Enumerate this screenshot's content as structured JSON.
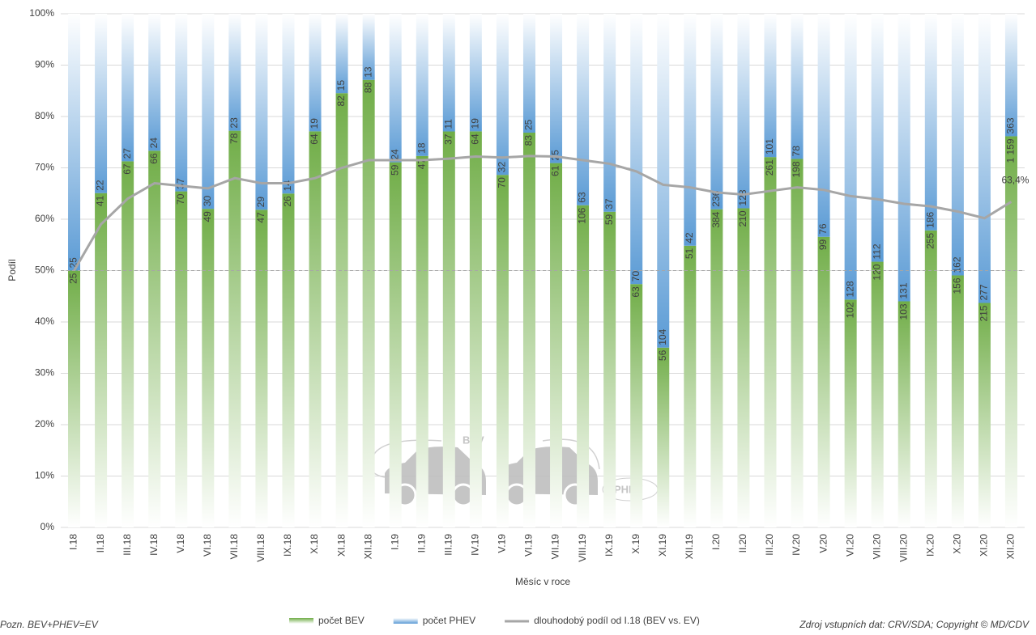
{
  "chart_data": {
    "type": "bar",
    "stacked": "percent",
    "y_label": "Podíl",
    "x_label": "Měsíc v roce",
    "note_left": "Pozn. BEV+PHEV=EV",
    "note_right": "Zdroj vstupních dat: CRV/SDA; Copyright © MD/CDV",
    "watermark_texts": [
      "BEV",
      "PHEV"
    ],
    "categories": [
      "I.18",
      "II.18",
      "III.18",
      "IV.18",
      "V.18",
      "VI.18",
      "VII.18",
      "VIII.18",
      "IX.18",
      "X.18",
      "XI.18",
      "XII.18",
      "I.19",
      "II.19",
      "III.19",
      "IV.19",
      "V.19",
      "VI.19",
      "VII.19",
      "VIII.19",
      "IX.19",
      "X.19",
      "XI.19",
      "XII.19",
      "I.20",
      "II.20",
      "III.20",
      "IV.20",
      "V.20",
      "VI.20",
      "VII.20",
      "VIII.20",
      "IX.20",
      "X.20",
      "XI.20",
      "XII.20"
    ],
    "series": [
      {
        "name": "počet BEV",
        "type": "bar",
        "color": "#70ad47",
        "values": [
          25,
          41,
          67,
          66,
          70,
          49,
          78,
          47,
          26,
          64,
          82,
          88,
          59,
          47,
          37,
          64,
          70,
          83,
          61,
          106,
          59,
          63,
          56,
          51,
          384,
          210,
          261,
          198,
          99,
          102,
          120,
          103,
          255,
          156,
          215,
          1159
        ],
        "value_labels": [
          null,
          null,
          null,
          null,
          null,
          null,
          null,
          null,
          null,
          null,
          null,
          null,
          null,
          null,
          null,
          null,
          null,
          null,
          null,
          null,
          null,
          null,
          null,
          null,
          null,
          null,
          null,
          null,
          null,
          null,
          null,
          null,
          null,
          null,
          null,
          "1 159"
        ]
      },
      {
        "name": "počet PHEV",
        "type": "bar",
        "color": "#5b9bd5",
        "values": [
          25,
          22,
          27,
          24,
          37,
          30,
          23,
          29,
          14,
          19,
          15,
          13,
          24,
          18,
          11,
          19,
          32,
          25,
          25,
          63,
          37,
          70,
          104,
          42,
          236,
          128,
          101,
          78,
          76,
          128,
          112,
          131,
          186,
          162,
          277,
          363
        ]
      },
      {
        "name": "dlouhodobý podíl od I.18 (BEV vs. EV)",
        "type": "line",
        "color": "#a6a6a6",
        "values": [
          50,
          59,
          64,
          67,
          66.5,
          66,
          68,
          67,
          67,
          68,
          70,
          71.5,
          71.5,
          71.5,
          71.8,
          72.2,
          72,
          72.3,
          72.2,
          71.5,
          70.8,
          69.3,
          66.7,
          66.2,
          65.2,
          64.8,
          65.5,
          66.2,
          65.7,
          64.5,
          63.9,
          63,
          62.5,
          61.5,
          60.2,
          63.4
        ],
        "value_labels": [
          null,
          null,
          null,
          null,
          null,
          null,
          null,
          null,
          null,
          null,
          null,
          null,
          null,
          null,
          null,
          null,
          null,
          null,
          null,
          null,
          null,
          null,
          null,
          null,
          null,
          null,
          null,
          null,
          null,
          null,
          null,
          null,
          null,
          null,
          null,
          "63,4%"
        ]
      }
    ],
    "ylim": [
      0,
      100
    ],
    "yticks": [
      {
        "value": 0,
        "label": "0%"
      },
      {
        "value": 10,
        "label": "10%"
      },
      {
        "value": 20,
        "label": "20%"
      },
      {
        "value": 30,
        "label": "30%"
      },
      {
        "value": 40,
        "label": "40%"
      },
      {
        "value": 50,
        "label": "50%"
      },
      {
        "value": 60,
        "label": "60%"
      },
      {
        "value": 70,
        "label": "70%"
      },
      {
        "value": 80,
        "label": "80%"
      },
      {
        "value": 90,
        "label": "90%"
      },
      {
        "value": 100,
        "label": "100%"
      }
    ],
    "reference_line": 50,
    "grid": true
  }
}
